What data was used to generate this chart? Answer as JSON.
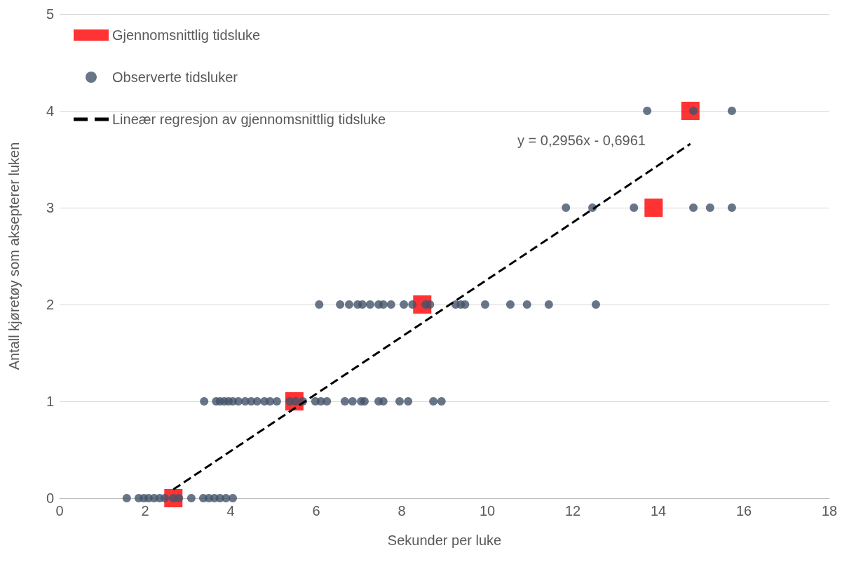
{
  "chart_data": {
    "type": "scatter",
    "xlabel": "Sekunder per luke",
    "ylabel": "Antall kjøretøy som aksepterer luken",
    "xlim": [
      0,
      18
    ],
    "xticks": [
      0,
      2,
      4,
      6,
      8,
      10,
      12,
      14,
      16,
      18
    ],
    "ylim": [
      0,
      5
    ],
    "yticks": [
      0,
      1,
      2,
      3,
      4,
      5
    ],
    "grid": "y",
    "legend": "top left",
    "annotations": [
      "y = 0,2956x - 0,6961"
    ],
    "series": [
      {
        "name": "Gjennomsnittlig tidsluke",
        "marker": "square",
        "color": "#ff0000",
        "x": [
          2.66,
          5.49,
          8.48,
          13.89,
          14.75
        ],
        "values": [
          0,
          1,
          2,
          3,
          4
        ]
      },
      {
        "name": "Observerte tidsluker",
        "marker": "circle",
        "color": "#44546a",
        "x": [
          1.57,
          1.85,
          1.97,
          2.08,
          2.21,
          2.34,
          2.46,
          2.66,
          2.79,
          3.08,
          3.36,
          3.49,
          3.62,
          3.75,
          3.89,
          4.05,
          3.38,
          3.66,
          3.75,
          3.85,
          3.95,
          4.05,
          4.18,
          4.34,
          4.48,
          4.62,
          4.79,
          4.92,
          5.08,
          5.38,
          5.52,
          5.69,
          5.98,
          6.11,
          6.25,
          6.67,
          6.85,
          7.05,
          7.13,
          7.46,
          7.57,
          7.95,
          8.15,
          8.74,
          8.93,
          6.07,
          6.56,
          6.77,
          6.97,
          7.08,
          7.26,
          7.46,
          7.57,
          7.75,
          8.05,
          8.25,
          8.56,
          8.66,
          9.26,
          9.38,
          9.48,
          9.95,
          10.54,
          10.93,
          11.44,
          12.54,
          11.84,
          12.46,
          13.43,
          14.82,
          15.21,
          15.72,
          13.74,
          14.82,
          15.72
        ],
        "values": [
          0,
          0,
          0,
          0,
          0,
          0,
          0,
          0,
          0,
          0,
          0,
          0,
          0,
          0,
          0,
          0,
          1,
          1,
          1,
          1,
          1,
          1,
          1,
          1,
          1,
          1,
          1,
          1,
          1,
          1,
          1,
          1,
          1,
          1,
          1,
          1,
          1,
          1,
          1,
          1,
          1,
          1,
          1,
          1,
          1,
          2,
          2,
          2,
          2,
          2,
          2,
          2,
          2,
          2,
          2,
          2,
          2,
          2,
          2,
          2,
          2,
          2,
          2,
          2,
          2,
          2,
          3,
          3,
          3,
          3,
          3,
          3,
          4,
          4,
          4
        ]
      },
      {
        "name": "Lineær regresjon av gjennomsnittlig tidsluke",
        "type": "line",
        "marker": "none",
        "line_style": "dashed",
        "color": "#000000",
        "x": [
          2.66,
          14.75
        ],
        "values": [
          0.09,
          3.66
        ]
      }
    ]
  }
}
